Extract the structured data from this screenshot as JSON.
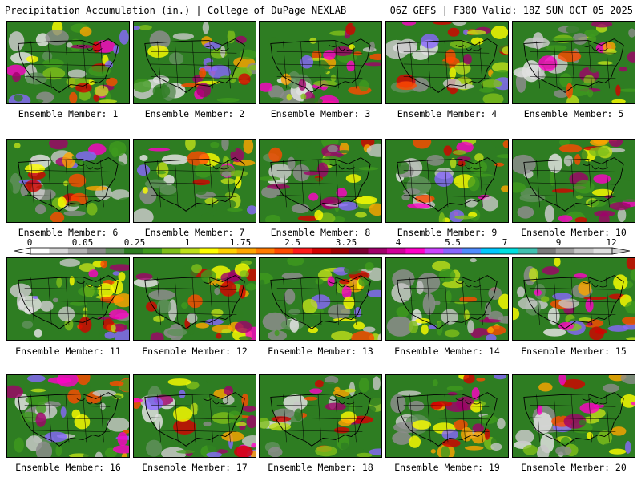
{
  "header": {
    "title_left": "Precipitation Accumulation (in.) | College of DuPage NEXLAB",
    "title_right": "06Z GEFS | F300 Valid: 18Z SUN OCT 05 2025"
  },
  "members": [
    {
      "label": "Ensemble Member: 1",
      "seed": 11
    },
    {
      "label": "Ensemble Member: 2",
      "seed": 23
    },
    {
      "label": "Ensemble Member: 3",
      "seed": 37
    },
    {
      "label": "Ensemble Member: 4",
      "seed": 41
    },
    {
      "label": "Ensemble Member: 5",
      "seed": 53
    },
    {
      "label": "Ensemble Member: 6",
      "seed": 67
    },
    {
      "label": "Ensemble Member: 7",
      "seed": 71
    },
    {
      "label": "Ensemble Member: 8",
      "seed": 83
    },
    {
      "label": "Ensemble Member: 9",
      "seed": 97
    },
    {
      "label": "Ensemble Member: 10",
      "seed": 101
    },
    {
      "label": "Ensemble Member: 11",
      "seed": 113
    },
    {
      "label": "Ensemble Member: 12",
      "seed": 127
    },
    {
      "label": "Ensemble Member: 13",
      "seed": 131
    },
    {
      "label": "Ensemble Member: 14",
      "seed": 149
    },
    {
      "label": "Ensemble Member: 15",
      "seed": 151
    },
    {
      "label": "Ensemble Member: 16",
      "seed": 163
    },
    {
      "label": "Ensemble Member: 17",
      "seed": 173
    },
    {
      "label": "Ensemble Member: 18",
      "seed": 181
    },
    {
      "label": "Ensemble Member: 19",
      "seed": 191
    },
    {
      "label": "Ensemble Member: 20",
      "seed": 199
    }
  ],
  "colorbar": {
    "ticks": [
      "0",
      "0.05",
      "0.25",
      "1",
      "1.75",
      "2.5",
      "3.25",
      "4",
      "5.5",
      "7",
      "9",
      "12"
    ],
    "colors": [
      "#ffffff",
      "#d8d8d8",
      "#b4b4b4",
      "#8c8c8c",
      "#5f8f5a",
      "#2e7d22",
      "#3f9a1e",
      "#7fbf1a",
      "#bfe01a",
      "#ffff00",
      "#ffd000",
      "#ffa500",
      "#ff7a00",
      "#ff4a00",
      "#ff1a1a",
      "#d40000",
      "#a00000",
      "#7a0030",
      "#a0006a",
      "#d0009a",
      "#ff00c8",
      "#cc44ff",
      "#8866ff",
      "#4f8cff",
      "#00c8ff",
      "#00e0e0",
      "#40c0b0",
      "#7a7a7a",
      "#a0a0a0",
      "#c8c8c8",
      "#e0e0e0"
    ]
  }
}
